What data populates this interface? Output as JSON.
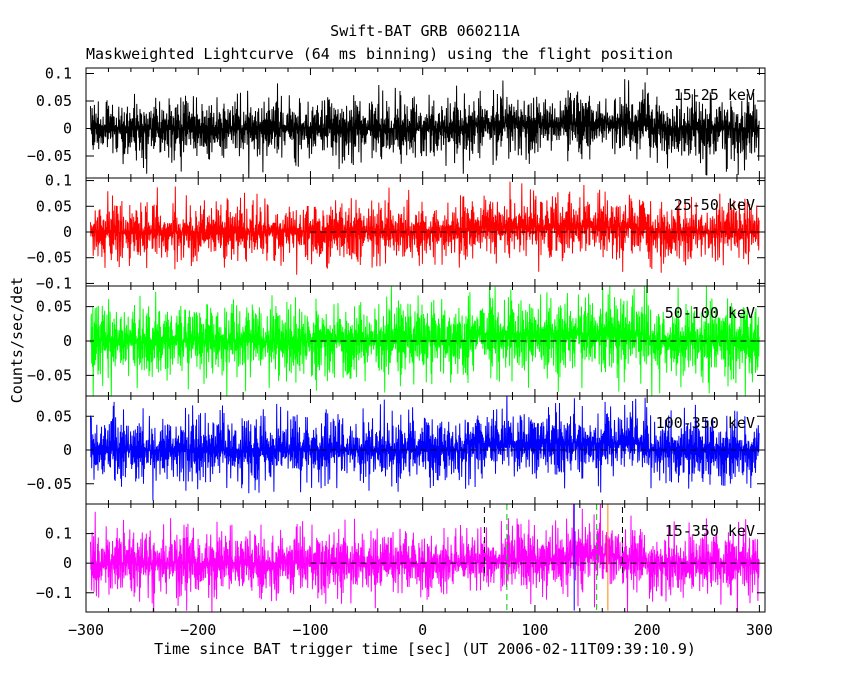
{
  "chart_data": {
    "type": "line",
    "title": "Swift-BAT GRB 060211A",
    "subtitle": "Maskweighted Lightcurve (64 ms binning) using the flight position",
    "xlabel": "Time since BAT trigger time [sec] (UT 2006-02-11T09:39:10.9)",
    "ylabel": "Counts/sec/det",
    "xlim": [
      -300,
      305
    ],
    "x_ticks": [
      -300,
      -200,
      -100,
      0,
      100,
      200,
      300
    ],
    "x_tick_labels": [
      "−300",
      "−200",
      "−100",
      "0",
      "100",
      "200",
      "300"
    ],
    "grid": false,
    "panels": [
      {
        "name": "15-25 keV",
        "color": "#000000",
        "ylim": [
          -0.09,
          0.11
        ],
        "y_ticks": [
          0.1,
          0.05,
          0,
          -0.05
        ],
        "y_tick_labels": [
          "0.1",
          "0.05",
          "0",
          "−0.05"
        ],
        "noise_amplitude": 0.04,
        "zero_line": false
      },
      {
        "name": "25-50 keV",
        "color": "#ff0000",
        "ylim": [
          -0.105,
          0.105
        ],
        "y_ticks": [
          0.1,
          0.05,
          0,
          -0.05,
          -0.1
        ],
        "y_tick_labels": [
          "0.1",
          "0.05",
          "0",
          "−0.05",
          "−0.1"
        ],
        "noise_amplitude": 0.04,
        "zero_line": true
      },
      {
        "name": "50-100 keV",
        "color": "#00ff00",
        "ylim": [
          -0.08,
          0.08
        ],
        "y_ticks": [
          0.05,
          0,
          -0.05
        ],
        "y_tick_labels": [
          "0.05",
          "0",
          "−0.05"
        ],
        "noise_amplitude": 0.04,
        "zero_line": true
      },
      {
        "name": "100-350 keV",
        "color": "#0000ff",
        "ylim": [
          -0.08,
          0.08
        ],
        "y_ticks": [
          0.05,
          0,
          -0.05
        ],
        "y_tick_labels": [
          "0.05",
          "0",
          "−0.05"
        ],
        "noise_amplitude": 0.035,
        "zero_line": true
      },
      {
        "name": "15-350 keV",
        "color": "#ff00ff",
        "ylim": [
          -0.165,
          0.2
        ],
        "y_ticks": [
          0.1,
          0,
          -0.1
        ],
        "y_tick_labels": [
          "0.1",
          "0",
          "−0.1"
        ],
        "noise_amplitude": 0.08,
        "zero_line": true
      }
    ],
    "zero_line_range": [
      -100,
      300
    ],
    "markers": [
      {
        "x": 55,
        "color": "#000000",
        "style": "dashed",
        "y_range": [
          -0.04,
          0.19
        ]
      },
      {
        "x": 75,
        "color": "#00cc00",
        "style": "dashed",
        "y_range": [
          -0.16,
          0.2
        ]
      },
      {
        "x": 135,
        "color": "#0000ff",
        "style": "solid",
        "y_range": [
          -0.16,
          0.2
        ]
      },
      {
        "x": 155,
        "color": "#00cc00",
        "style": "dashed",
        "y_range": [
          -0.16,
          0.2
        ]
      },
      {
        "x": 165,
        "color": "#ff8000",
        "style": "solid",
        "y_range": [
          -0.16,
          0.2
        ]
      },
      {
        "x": 178,
        "color": "#000000",
        "style": "dashed",
        "y_range": [
          -0.04,
          0.19
        ]
      }
    ]
  }
}
